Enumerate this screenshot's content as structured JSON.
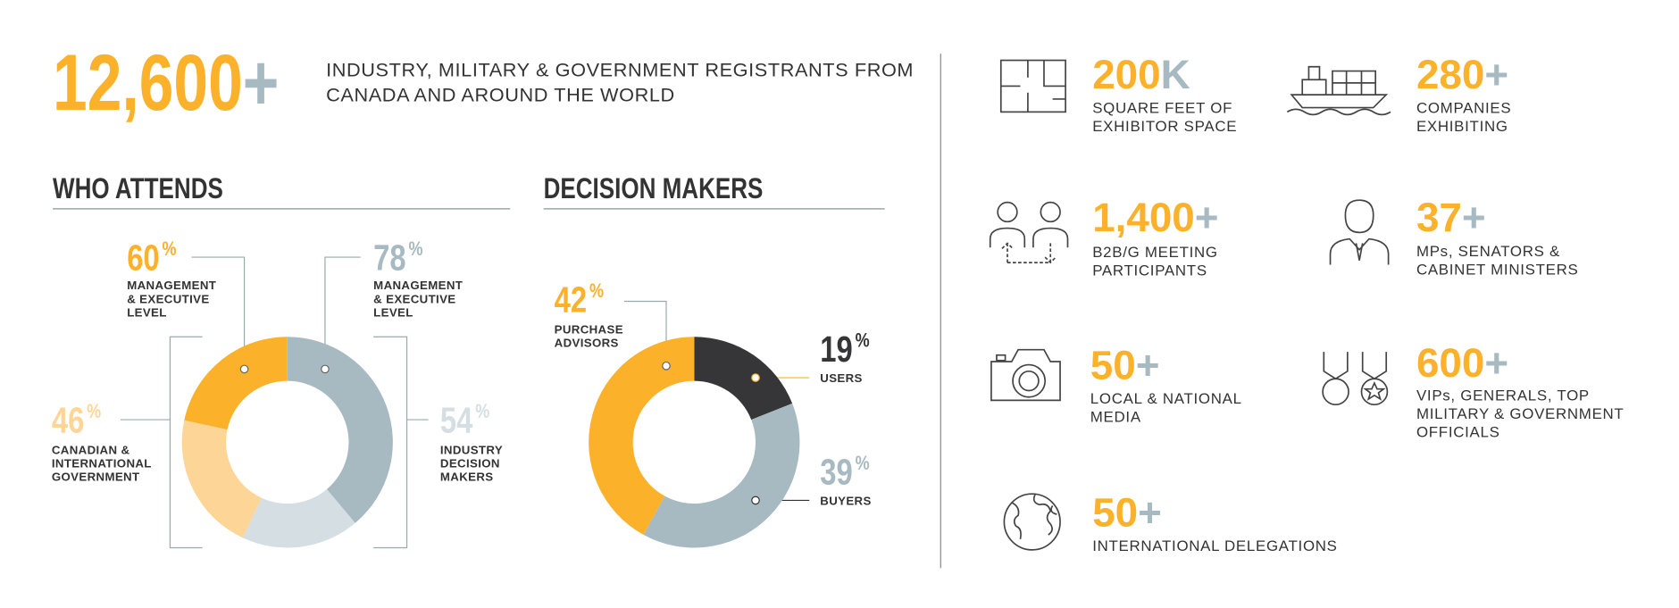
{
  "headline": {
    "figure": "12,600",
    "suffix": "+",
    "text": [
      "INDUSTRY, MILITARY & GOVERNMENT REGISTRANTS FROM",
      "CANADA AND AROUND THE WORLD"
    ]
  },
  "who_attends": {
    "title": "WHO ATTENDS",
    "stats": [
      {
        "value": 60,
        "unit": "%",
        "color": "#fbb12a",
        "label": [
          "MANAGEMENT",
          "& EXECUTIVE",
          "LEVEL"
        ]
      },
      {
        "value": 78,
        "unit": "%",
        "color": "#a7b9c1",
        "label": [
          "MANAGEMENT",
          "& EXECUTIVE",
          "LEVEL"
        ]
      },
      {
        "value": 46,
        "unit": "%",
        "color": "#fdd597",
        "label": [
          "CANADIAN &",
          "INTERNATIONAL",
          "GOVERNMENT"
        ]
      },
      {
        "value": 54,
        "unit": "%",
        "color": "#d5dee2",
        "label": [
          "INDUSTRY",
          "DECISION",
          "MAKERS"
        ]
      }
    ]
  },
  "decision_makers": {
    "title": "DECISION MAKERS",
    "segments": [
      {
        "value": 19,
        "unit": "%",
        "color": "#363537",
        "label": [
          "USERS"
        ]
      },
      {
        "value": 39,
        "unit": "%",
        "color": "#a7b9c1",
        "label": [
          "BUYERS"
        ]
      },
      {
        "value": 42,
        "unit": "%",
        "color": "#fbb12a",
        "label": [
          "PURCHASE",
          "ADVISORS"
        ]
      }
    ]
  },
  "stats": [
    {
      "figure": "200",
      "suffix": "K",
      "label": [
        "SQUARE FEET OF",
        "EXHIBITOR SPACE"
      ]
    },
    {
      "figure": "280",
      "suffix": "+",
      "label": [
        "COMPANIES",
        "EXHIBITING"
      ]
    },
    {
      "figure": "1,400",
      "suffix": "+",
      "label": [
        "B2B/G MEETING",
        "PARTICIPANTS"
      ]
    },
    {
      "figure": "37",
      "suffix": "+",
      "label": [
        "MPs, SENATORS &",
        "CABINET MINISTERS"
      ]
    },
    {
      "figure": "50",
      "suffix": "+",
      "label": [
        "LOCAL & NATIONAL",
        "MEDIA"
      ]
    },
    {
      "figure": "600",
      "suffix": "+",
      "label": [
        "VIPs, GENERALS, TOP",
        "MILITARY & GOVERNMENT",
        "OFFICIALS"
      ]
    },
    {
      "figure": "50",
      "suffix": "+",
      "label": [
        "INTERNATIONAL DELEGATIONS"
      ]
    }
  ]
}
